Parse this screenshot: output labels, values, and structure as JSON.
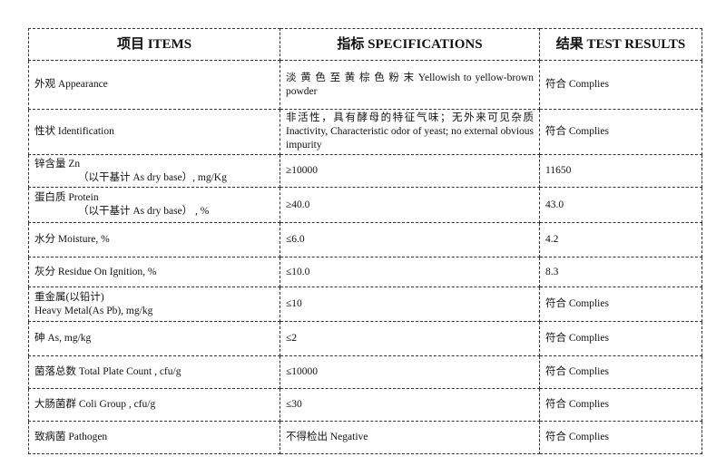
{
  "headers": [
    "项目 ITEMS",
    "指标 SPECIFICATIONS",
    "结果 TEST RESULTS"
  ],
  "rows": [
    {
      "item": "外观 Appearance",
      "item_sub": "",
      "spec": "淡 黄 色 至 黄 棕 色 粉 末  Yellowish to yellow-brown powder",
      "result": "符合 Complies"
    },
    {
      "item": "性状 Identification",
      "item_sub": "",
      "spec": "非活性，具有酵母的特征气味；无外来可见杂质 Inactivity, Characteristic odor of yeast; no external obvious impurity",
      "result": "符合 Complies"
    },
    {
      "item": "锌含量 Zn",
      "item_sub": "（以干基计 As dry base）, mg/Kg",
      "spec": "≥10000",
      "result": "11650"
    },
    {
      "item": "蛋白质 Protein",
      "item_sub": "（以干基计 As dry base） , %",
      "spec": "≥40.0",
      "result": "43.0"
    },
    {
      "item": "水分 Moisture, %",
      "item_sub": "",
      "spec": "≤6.0",
      "result": "4.2"
    },
    {
      "item": "灰分 Residue On Ignition, %",
      "item_sub": "",
      "spec": "≤10.0",
      "result": "8.3"
    },
    {
      "item": "重金属(以铅计)",
      "item_sub": "Heavy Metal(As Pb), mg/kg",
      "spec": "≤10",
      "result": "符合 Complies"
    },
    {
      "item": "砷 As, mg/kg",
      "item_sub": "",
      "spec": "≤2",
      "result": "符合 Complies"
    },
    {
      "item": "菌落总数 Total Plate Count , cfu/g",
      "item_sub": "",
      "spec": "≤10000",
      "result": "符合 Complies"
    },
    {
      "item": "大肠菌群 Coli Group , cfu/g",
      "item_sub": "",
      "spec": "≤30",
      "result": "符合 Complies"
    },
    {
      "item": "致病菌 Pathogen",
      "item_sub": "",
      "spec": "不得检出 Negative",
      "result": "符合 Complies"
    }
  ]
}
